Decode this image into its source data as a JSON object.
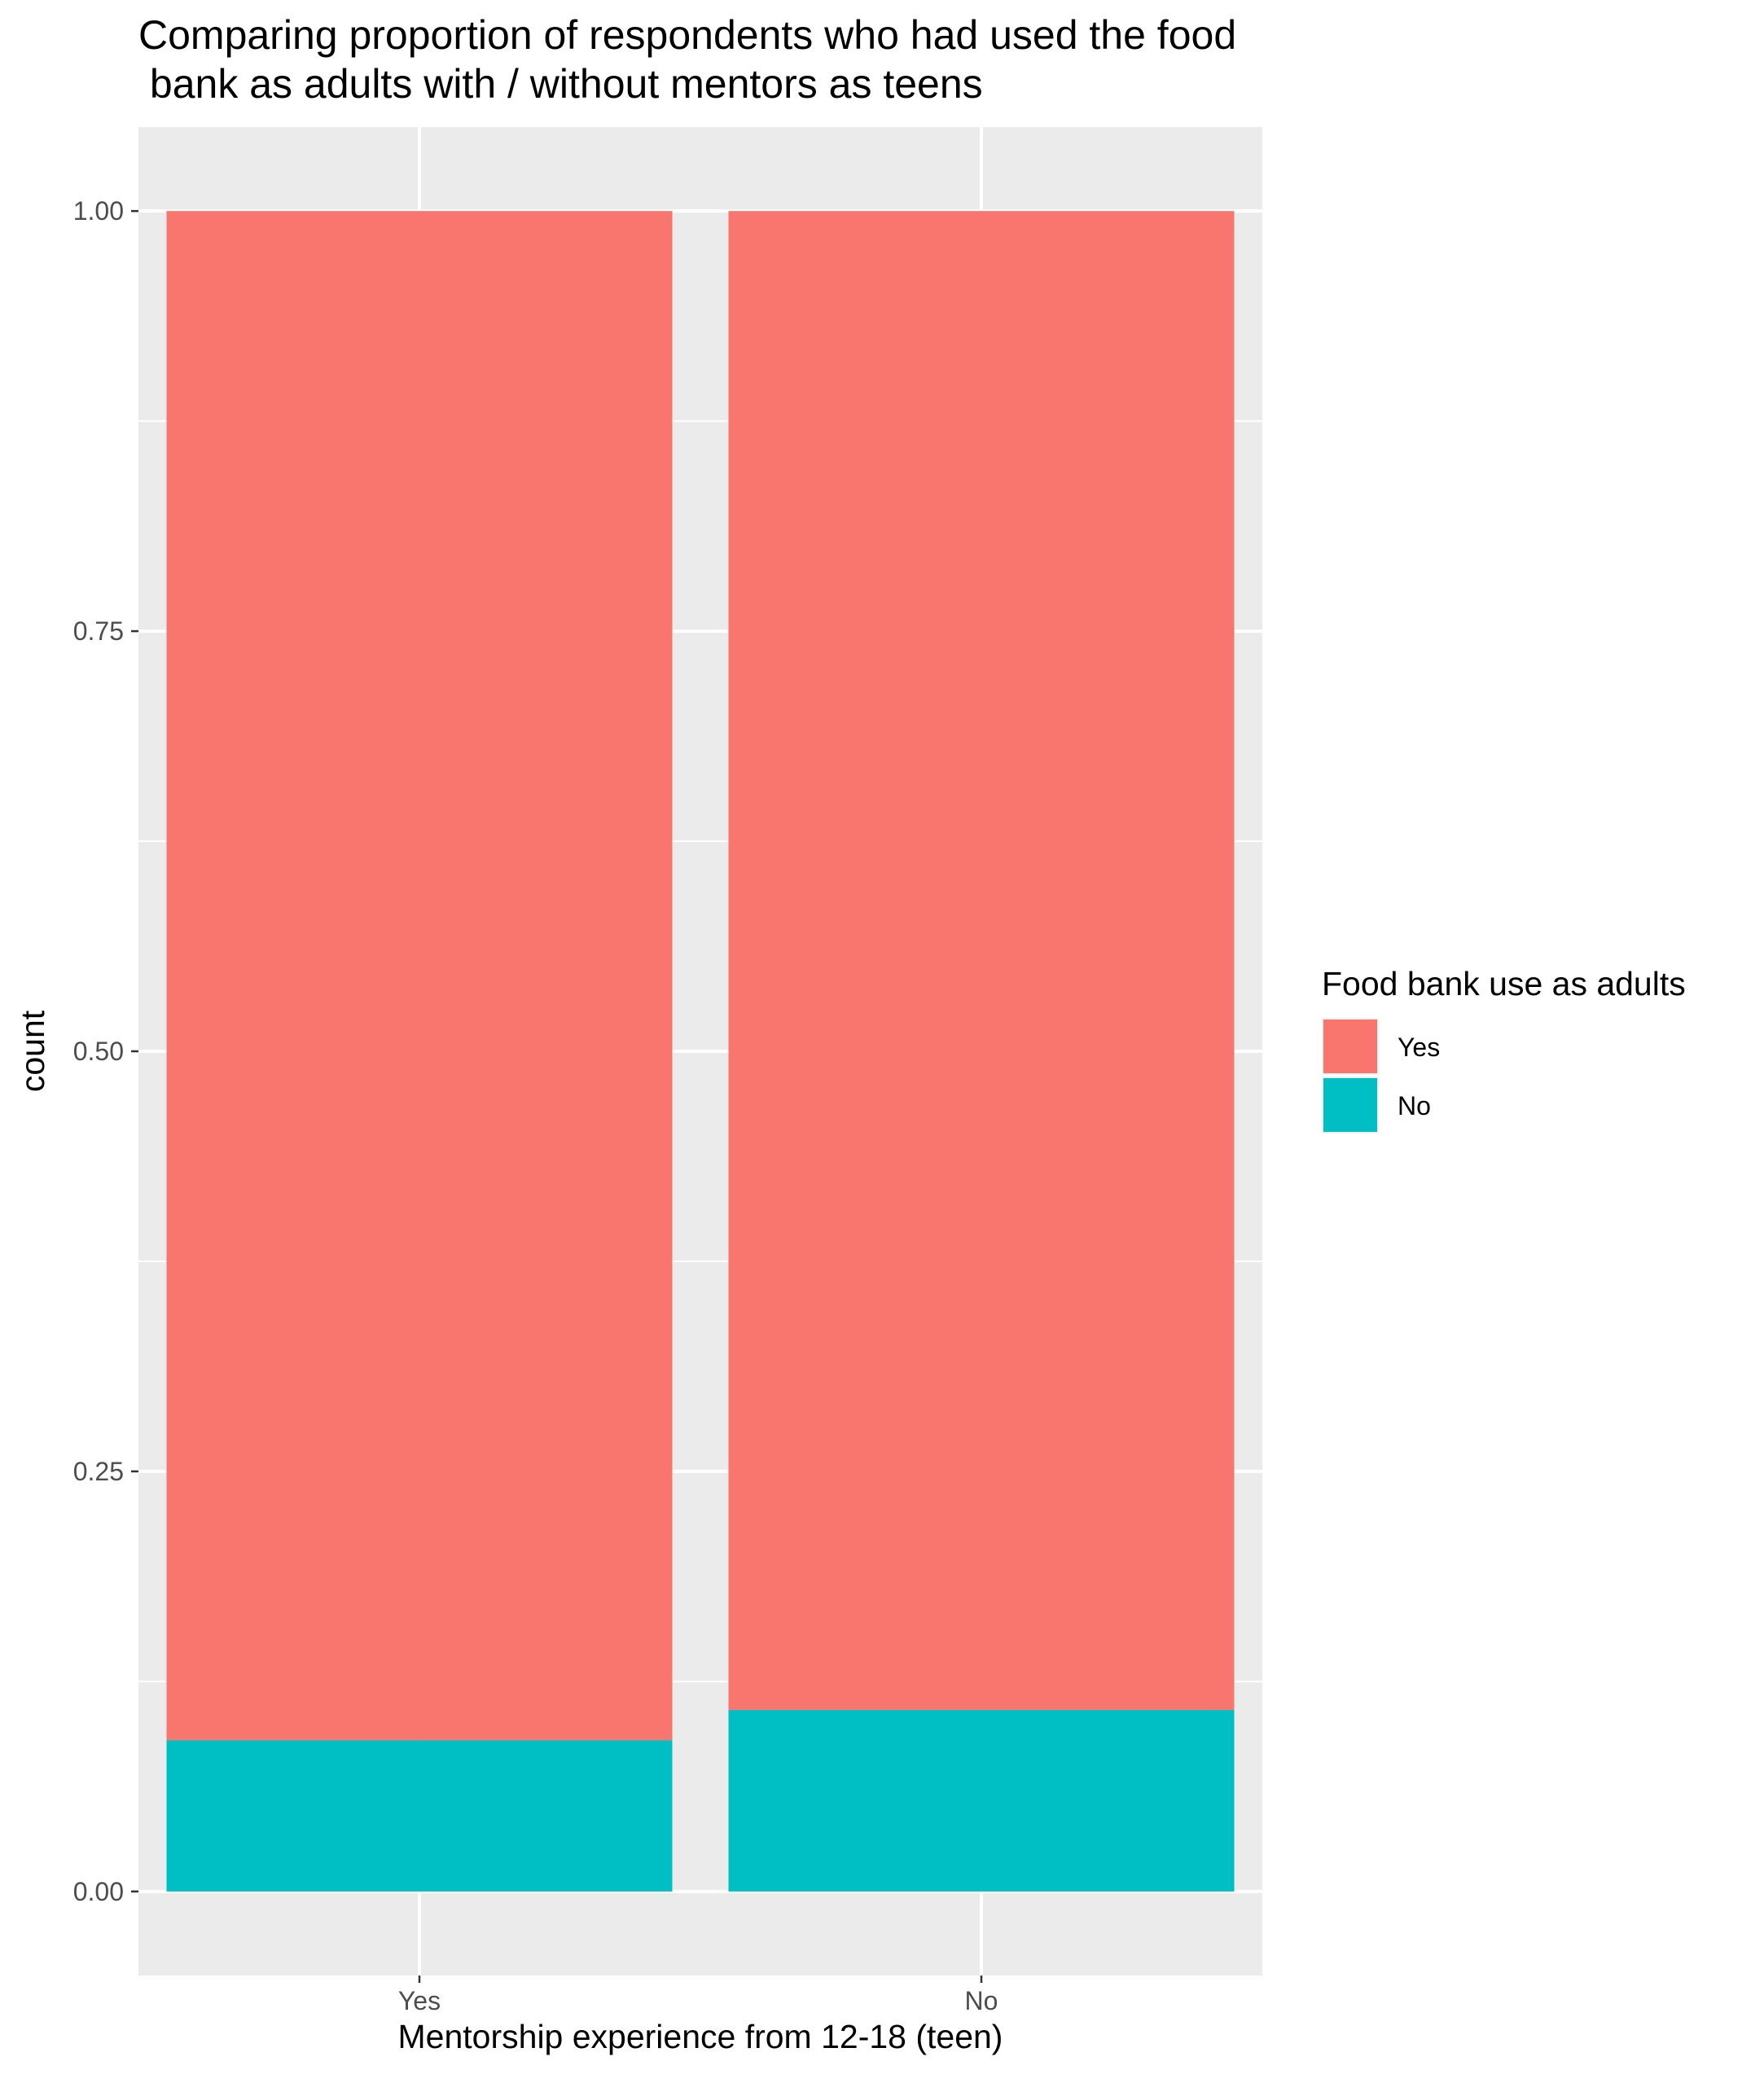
{
  "chart_data": {
    "type": "bar",
    "stacked": true,
    "title_lines": [
      "Comparing proportion of respondents who had used the food",
      " bank as adults with / without mentors as teens"
    ],
    "xlabel": "Mentorship experience from 12-18 (teen)",
    "ylabel": "count",
    "categories": [
      "Yes",
      "No"
    ],
    "series": [
      {
        "name": "Yes",
        "color": "#F8766D",
        "values": [
          0.91,
          0.892
        ]
      },
      {
        "name": "No",
        "color": "#00BFC4",
        "values": [
          0.09,
          0.108
        ]
      }
    ],
    "stack_order": [
      "No",
      "Yes"
    ],
    "ylim": [
      -0.05,
      1.05
    ],
    "yticks": [
      0,
      0.25,
      0.5,
      0.75,
      1.0
    ],
    "ytick_labels": [
      "0.00",
      "0.25",
      "0.50",
      "0.75",
      "1.00"
    ],
    "grid": true,
    "legend": {
      "title": "Food bank use as adults",
      "position": "right",
      "entries": [
        {
          "label": "Yes",
          "color": "#F8766D"
        },
        {
          "label": "No",
          "color": "#00BFC4"
        }
      ]
    },
    "panel_background": "#EBEBEB",
    "grid_color": "#FFFFFF"
  }
}
